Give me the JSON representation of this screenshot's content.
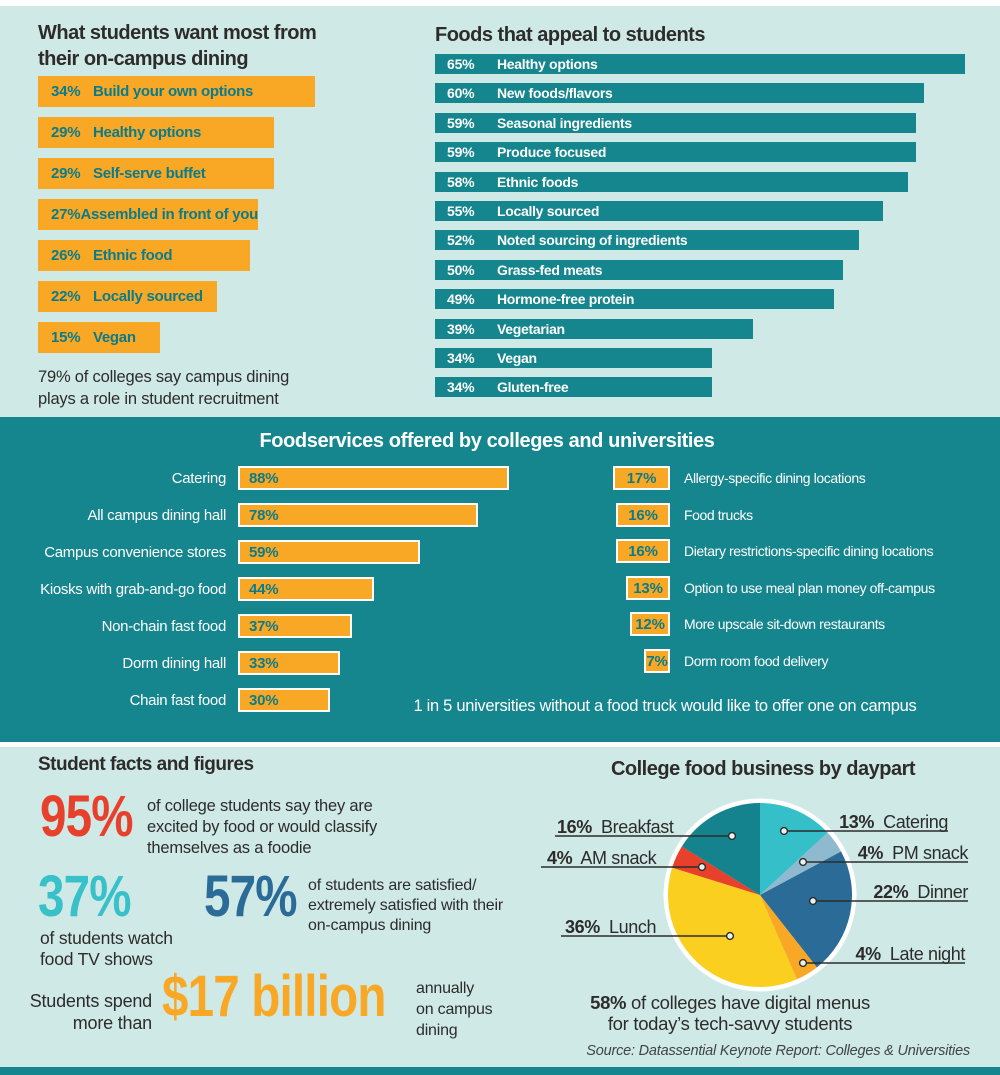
{
  "colors": {
    "background": "#CFE9E7",
    "teal": "#15858E",
    "orange": "#F9A826",
    "teal_text_on_orange": "#0C7B89",
    "dark_text": "#2D2C2A",
    "red": "#E7402B",
    "cyan": "#38C1C9",
    "dark_blue": "#2A6B97",
    "yellow": "#FBCF20",
    "pale_blue": "#8FB9CF",
    "white": "#FFFFFF"
  },
  "sections": {
    "top_left_title_lines": [
      "What students want most from",
      "their on-campus dining"
    ],
    "top_left_note_lines": [
      "79% of colleges say campus dining",
      "plays a role in student recruitment"
    ],
    "pie_caption_bold": "58%",
    "pie_caption_rest": " of colleges have digital menus",
    "pie_caption_line2": "for today’s tech-savvy students",
    "source": "Source: Datassential Keynote Report: Colleges & Universities"
  },
  "facts": {
    "heading": "Student facts and figures",
    "f95": {
      "value": "95%",
      "lines": [
        "of college students say they are",
        "excited by food or would classify",
        "themselves as a foodie"
      ]
    },
    "f37": {
      "value": "37%",
      "lines": [
        "of students watch",
        "food TV shows"
      ]
    },
    "f57": {
      "value": "57%",
      "lines": [
        "of students are satisfied/",
        "extremely satisfied with their",
        "on-campus dining"
      ]
    },
    "f17": {
      "prefix_lines": [
        "Students spend",
        "more than"
      ],
      "value": "$17 billion",
      "suffix_lines": [
        "annually",
        "on campus",
        "dining"
      ]
    }
  },
  "chart_data": [
    {
      "id": "wants",
      "type": "bar",
      "title": "What students want most from their on-campus dining",
      "categories": [
        "Build your own options",
        "Healthy options",
        "Self-serve buffet",
        "Assembled in front of you",
        "Ethnic food",
        "Locally sourced",
        "Vegan"
      ],
      "values": [
        34,
        29,
        29,
        27,
        26,
        22,
        15
      ],
      "bar_color": "#F9A826",
      "value_suffix": "%",
      "note": "79% of colleges say campus dining plays a role in student recruitment"
    },
    {
      "id": "appeal",
      "type": "bar",
      "title": "Foods that appeal to students",
      "categories": [
        "Healthy options",
        "New foods/flavors",
        "Seasonal ingredients",
        "Produce focused",
        "Ethnic foods",
        "Locally sourced",
        "Noted sourcing of ingredients",
        "Grass-fed meats",
        "Hormone-free protein",
        "Vegetarian",
        "Vegan",
        "Gluten-free"
      ],
      "values": [
        65,
        60,
        59,
        59,
        58,
        55,
        52,
        50,
        49,
        39,
        34,
        34
      ],
      "bar_color": "#15858E",
      "value_suffix": "%"
    },
    {
      "id": "foodservices",
      "type": "bar",
      "title": "Foodservices offered by colleges and universities",
      "series": [
        {
          "name": "left-column",
          "categories": [
            "Catering",
            "All campus dining hall",
            "Campus convenience stores",
            "Kiosks with grab-and-go food",
            "Non-chain fast food",
            "Dorm dining hall",
            "Chain fast food"
          ],
          "values": [
            88,
            78,
            59,
            44,
            37,
            33,
            30
          ]
        },
        {
          "name": "right-column",
          "categories": [
            "Allergy-specific dining locations",
            "Food trucks",
            "Dietary restrictions-specific dining locations",
            "Option to use meal plan money off-campus",
            "More upscale sit-down restaurants",
            "Dorm room food delivery"
          ],
          "values": [
            17,
            16,
            16,
            13,
            12,
            7
          ]
        }
      ],
      "bar_color": "#F9A826",
      "value_suffix": "%",
      "note": "1 in 5 universities without a food truck would like to offer one on campus"
    },
    {
      "id": "daypart",
      "type": "pie",
      "title": "College food business by daypart",
      "labels": [
        "Catering",
        "PM snack",
        "Dinner",
        "Late night",
        "Lunch",
        "AM snack",
        "Breakfast"
      ],
      "values": [
        13,
        4,
        22,
        4,
        36,
        4,
        16
      ],
      "colors": [
        "#35BFC8",
        "#8FB9CF",
        "#2A6B97",
        "#F9A826",
        "#FBCF20",
        "#E7402B",
        "#15838D"
      ],
      "start_angle": "12 o'clock, clockwise",
      "caption": "58% of colleges have digital menus for today's tech-savvy students"
    }
  ]
}
